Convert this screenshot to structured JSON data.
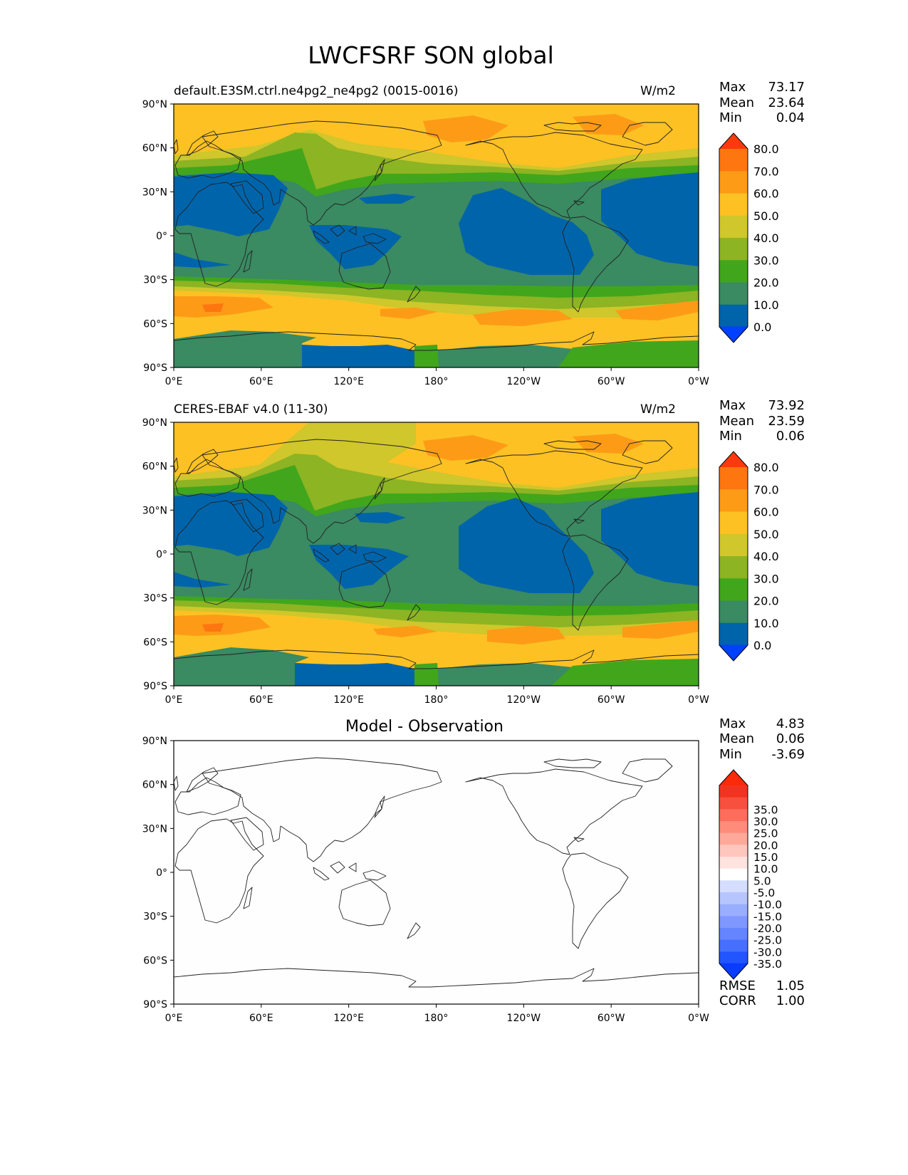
{
  "suptitle": "LWCFSRF SON global",
  "panels": [
    {
      "id": "model",
      "title_left": "default.E3SM.ctrl.ne4pg2_ne4pg2 (0015-0016)",
      "title_center": "",
      "units": "W/m2",
      "stats": [
        {
          "label": "Max",
          "value": "73.17"
        },
        {
          "label": "Mean",
          "value": "23.64"
        },
        {
          "label": "Min",
          "value": "0.04"
        }
      ],
      "extra_stats": [],
      "colorbar": {
        "colors": [
          "#0040ff",
          "#0064aa",
          "#3a8a62",
          "#41a61c",
          "#8cb423",
          "#cfc72b",
          "#fdc123",
          "#fd9b16",
          "#fd7610",
          "#fd390d"
        ],
        "labels": [
          "0.0",
          "10.0",
          "20.0",
          "30.0",
          "40.0",
          "50.0",
          "60.0",
          "70.0",
          "80.0"
        ]
      }
    },
    {
      "id": "obs",
      "title_left": "CERES-EBAF v4.0 (11-30)",
      "title_center": "",
      "units": "W/m2",
      "stats": [
        {
          "label": "Max",
          "value": "73.92"
        },
        {
          "label": "Mean",
          "value": "23.59"
        },
        {
          "label": "Min",
          "value": "0.06"
        }
      ],
      "extra_stats": [],
      "colorbar": {
        "colors": [
          "#0040ff",
          "#0064aa",
          "#3a8a62",
          "#41a61c",
          "#8cb423",
          "#cfc72b",
          "#fdc123",
          "#fd9b16",
          "#fd7610",
          "#fd390d"
        ],
        "labels": [
          "0.0",
          "10.0",
          "20.0",
          "30.0",
          "40.0",
          "50.0",
          "60.0",
          "70.0",
          "80.0"
        ]
      }
    },
    {
      "id": "diff",
      "title_left": "",
      "title_center": "Model - Observation",
      "units": "",
      "stats": [
        {
          "label": "Max",
          "value": "4.83"
        },
        {
          "label": "Mean",
          "value": "0.06"
        },
        {
          "label": "Min",
          "value": "-3.69"
        }
      ],
      "extra_stats": [
        {
          "label": "RMSE",
          "value": "1.05"
        },
        {
          "label": "CORR",
          "value": "1.00"
        }
      ],
      "colorbar": {
        "colors": [
          "#0a3cff",
          "#2355ff",
          "#476fff",
          "#6584ff",
          "#7f98ff",
          "#9aaeff",
          "#b7c5ff",
          "#d5deff",
          "#ffffff",
          "#ffe3de",
          "#ffc6bd",
          "#ffa99b",
          "#ff8c7b",
          "#fd6d5c",
          "#f7503e",
          "#f13422",
          "#fb2a08"
        ],
        "labels": [
          "-35.0",
          "-30.0",
          "-25.0",
          "-20.0",
          "-15.0",
          "-10.0",
          "-5.0",
          "5.0",
          "10.0",
          "15.0",
          "20.0",
          "25.0",
          "30.0",
          "35.0"
        ]
      }
    }
  ],
  "lon_ticks": [
    "0°E",
    "60°E",
    "120°E",
    "180°",
    "120°W",
    "60°W",
    "0°W"
  ],
  "lat_ticks": [
    "90°N",
    "60°N",
    "30°N",
    "0°",
    "30°S",
    "60°S",
    "90°S"
  ]
}
